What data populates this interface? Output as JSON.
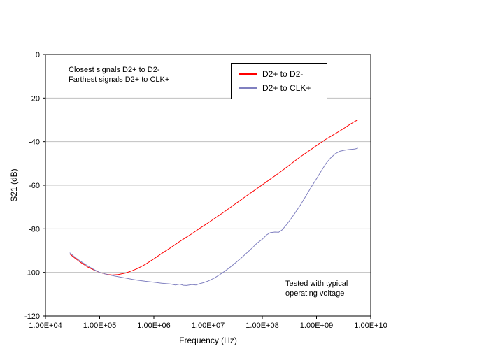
{
  "chart_data": {
    "type": "line",
    "title": "",
    "xlabel": "Frequency (Hz)",
    "ylabel": "S21 (dB)",
    "x_scale": "log",
    "xlim": [
      10000.0,
      10000000000.0
    ],
    "ylim": [
      -120,
      0
    ],
    "x_tick_labels": [
      "1.00E+04",
      "1.00E+05",
      "1.00E+06",
      "1.00E+07",
      "1.00E+08",
      "1.00E+09",
      "1.00E+10"
    ],
    "y_ticks": [
      0,
      -20,
      -40,
      -60,
      -80,
      -100,
      -120
    ],
    "grid": "horizontal",
    "grid_color": "#c0c0c0",
    "axis_color": "#000000",
    "legend_position": "top-center-inside",
    "annotations": [
      {
        "id": "note-top-left",
        "lines": [
          "Closest signals D2+ to D2-",
          "Farthest signals D2+ to CLK+"
        ]
      },
      {
        "id": "note-bottom-right",
        "lines": [
          "Tested with typical",
          "operating voltage"
        ]
      }
    ],
    "series": [
      {
        "name": "D2+ to D2-",
        "color": "#ff0000",
        "points": [
          [
            28000.0,
            -91.5
          ],
          [
            35000.0,
            -93.5
          ],
          [
            45000.0,
            -95.5
          ],
          [
            60000.0,
            -97.5
          ],
          [
            80000.0,
            -99
          ],
          [
            100000.0,
            -100
          ],
          [
            130000.0,
            -100.8
          ],
          [
            170000.0,
            -101.2
          ],
          [
            220000.0,
            -101
          ],
          [
            300000.0,
            -100.3
          ],
          [
            400000.0,
            -99.2
          ],
          [
            500000.0,
            -98.2
          ],
          [
            700000.0,
            -96.3
          ],
          [
            1000000.0,
            -93.8
          ],
          [
            1400000.0,
            -91.3
          ],
          [
            2000000.0,
            -88.8
          ],
          [
            3000000.0,
            -85.8
          ],
          [
            4000000.0,
            -83.8
          ],
          [
            5000000.0,
            -82.3
          ],
          [
            7000000.0,
            -79.8
          ],
          [
            10000000.0,
            -77.3
          ],
          [
            14000000.0,
            -74.8
          ],
          [
            20000000.0,
            -72.2
          ],
          [
            30000000.0,
            -69
          ],
          [
            40000000.0,
            -66.8
          ],
          [
            50000000.0,
            -65
          ],
          [
            70000000.0,
            -62.5
          ],
          [
            100000000.0,
            -59.8
          ],
          [
            140000000.0,
            -57.2
          ],
          [
            200000000.0,
            -54.5
          ],
          [
            300000000.0,
            -51.2
          ],
          [
            400000000.0,
            -48.8
          ],
          [
            500000000.0,
            -47
          ],
          [
            700000000.0,
            -44.5
          ],
          [
            1000000000.0,
            -41.8
          ],
          [
            1400000000.0,
            -39.3
          ],
          [
            2000000000.0,
            -37
          ],
          [
            2800000000.0,
            -34.8
          ],
          [
            4000000000.0,
            -32.3
          ],
          [
            5000000000.0,
            -30.8
          ],
          [
            5800000000.0,
            -30
          ]
        ]
      },
      {
        "name": "D2+ to CLK+",
        "color": "#8080c0",
        "points": [
          [
            28000.0,
            -91
          ],
          [
            35000.0,
            -93
          ],
          [
            45000.0,
            -95
          ],
          [
            60000.0,
            -97
          ],
          [
            80000.0,
            -98.8
          ],
          [
            100000.0,
            -100
          ],
          [
            140000.0,
            -101
          ],
          [
            200000.0,
            -101.8
          ],
          [
            300000.0,
            -102.6
          ],
          [
            400000.0,
            -103.2
          ],
          [
            500000.0,
            -103.6
          ],
          [
            700000.0,
            -104.1
          ],
          [
            1000000.0,
            -104.5
          ],
          [
            1400000.0,
            -105
          ],
          [
            2000000.0,
            -105.3
          ],
          [
            2500000.0,
            -105.8
          ],
          [
            3000000.0,
            -105.4
          ],
          [
            3500000.0,
            -105.9
          ],
          [
            4000000.0,
            -106
          ],
          [
            5000000.0,
            -105.6
          ],
          [
            6000000.0,
            -105.8
          ],
          [
            7000000.0,
            -105.2
          ],
          [
            8000000.0,
            -104.8
          ],
          [
            10000000.0,
            -104
          ],
          [
            13000000.0,
            -102.6
          ],
          [
            16000000.0,
            -101.2
          ],
          [
            20000000.0,
            -99.6
          ],
          [
            25000000.0,
            -97.8
          ],
          [
            30000000.0,
            -96.2
          ],
          [
            40000000.0,
            -93.6
          ],
          [
            50000000.0,
            -91.4
          ],
          [
            60000000.0,
            -89.6
          ],
          [
            70000000.0,
            -88
          ],
          [
            80000000.0,
            -86.6
          ],
          [
            100000000.0,
            -84.8
          ],
          [
            120000000.0,
            -82.8
          ],
          [
            140000000.0,
            -81.8
          ],
          [
            170000000.0,
            -81.5
          ],
          [
            200000000.0,
            -81.6
          ],
          [
            230000000.0,
            -80.6
          ],
          [
            270000000.0,
            -78.6
          ],
          [
            320000000.0,
            -76.2
          ],
          [
            400000000.0,
            -72.8
          ],
          [
            500000000.0,
            -69.2
          ],
          [
            600000000.0,
            -66
          ],
          [
            700000000.0,
            -63.2
          ],
          [
            800000000.0,
            -60.8
          ],
          [
            1000000000.0,
            -57
          ],
          [
            1200000000.0,
            -53.8
          ],
          [
            1500000000.0,
            -50
          ],
          [
            1800000000.0,
            -47.6
          ],
          [
            2200000000.0,
            -45.6
          ],
          [
            2700000000.0,
            -44.4
          ],
          [
            3200000000.0,
            -44
          ],
          [
            4000000000.0,
            -43.6
          ],
          [
            5000000000.0,
            -43.4
          ],
          [
            5800000000.0,
            -43
          ]
        ]
      }
    ]
  }
}
